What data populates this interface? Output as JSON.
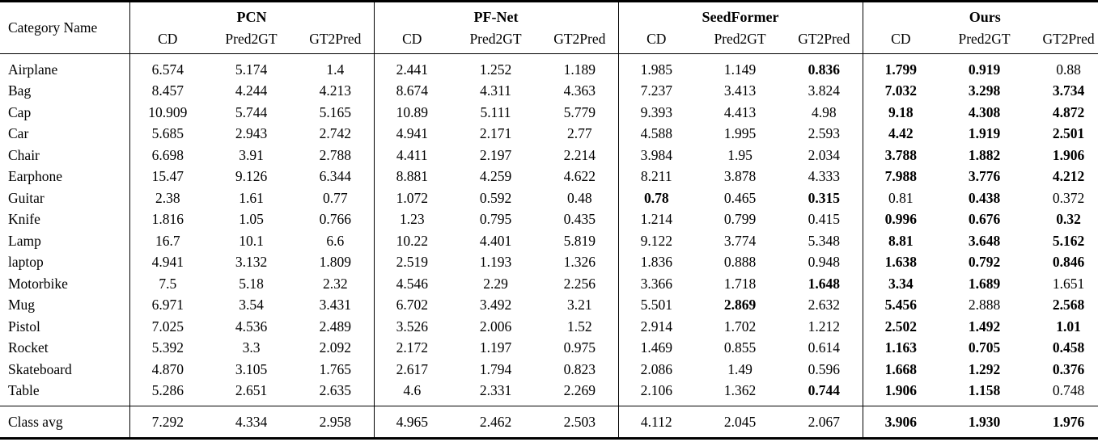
{
  "table": {
    "category_header": "Category Name",
    "groups": [
      "PCN",
      "PF-Net",
      "SeedFormer",
      "Ours"
    ],
    "metric_headers": [
      "CD",
      "Pred2GT",
      "GT2Pred"
    ],
    "rows": [
      {
        "category": "Airplane",
        "values": [
          "6.574",
          "5.174",
          "1.4",
          "2.441",
          "1.252",
          "1.189",
          "1.985",
          "1.149",
          "0.836",
          "1.799",
          "0.919",
          "0.88"
        ],
        "bold": [
          8,
          9,
          10
        ]
      },
      {
        "category": "Bag",
        "values": [
          "8.457",
          "4.244",
          "4.213",
          "8.674",
          "4.311",
          "4.363",
          "7.237",
          "3.413",
          "3.824",
          "7.032",
          "3.298",
          "3.734"
        ],
        "bold": [
          9,
          10,
          11
        ]
      },
      {
        "category": "Cap",
        "values": [
          "10.909",
          "5.744",
          "5.165",
          "10.89",
          "5.111",
          "5.779",
          "9.393",
          "4.413",
          "4.98",
          "9.18",
          "4.308",
          "4.872"
        ],
        "bold": [
          9,
          10,
          11
        ]
      },
      {
        "category": "Car",
        "values": [
          "5.685",
          "2.943",
          "2.742",
          "4.941",
          "2.171",
          "2.77",
          "4.588",
          "1.995",
          "2.593",
          "4.42",
          "1.919",
          "2.501"
        ],
        "bold": [
          9,
          10,
          11
        ]
      },
      {
        "category": "Chair",
        "values": [
          "6.698",
          "3.91",
          "2.788",
          "4.411",
          "2.197",
          "2.214",
          "3.984",
          "1.95",
          "2.034",
          "3.788",
          "1.882",
          "1.906"
        ],
        "bold": [
          9,
          10,
          11
        ]
      },
      {
        "category": "Earphone",
        "values": [
          "15.47",
          "9.126",
          "6.344",
          "8.881",
          "4.259",
          "4.622",
          "8.211",
          "3.878",
          "4.333",
          "7.988",
          "3.776",
          "4.212"
        ],
        "bold": [
          9,
          10,
          11
        ]
      },
      {
        "category": "Guitar",
        "values": [
          "2.38",
          "1.61",
          "0.77",
          "1.072",
          "0.592",
          "0.48",
          "0.78",
          "0.465",
          "0.315",
          "0.81",
          "0.438",
          "0.372"
        ],
        "bold": [
          6,
          8,
          10
        ]
      },
      {
        "category": "Knife",
        "values": [
          "1.816",
          "1.05",
          "0.766",
          "1.23",
          "0.795",
          "0.435",
          "1.214",
          "0.799",
          "0.415",
          "0.996",
          "0.676",
          "0.32"
        ],
        "bold": [
          9,
          10,
          11
        ]
      },
      {
        "category": "Lamp",
        "values": [
          "16.7",
          "10.1",
          "6.6",
          "10.22",
          "4.401",
          "5.819",
          "9.122",
          "3.774",
          "5.348",
          "8.81",
          "3.648",
          "5.162"
        ],
        "bold": [
          9,
          10,
          11
        ]
      },
      {
        "category": "laptop",
        "values": [
          "4.941",
          "3.132",
          "1.809",
          "2.519",
          "1.193",
          "1.326",
          "1.836",
          "0.888",
          "0.948",
          "1.638",
          "0.792",
          "0.846"
        ],
        "bold": [
          9,
          10,
          11
        ]
      },
      {
        "category": "Motorbike",
        "values": [
          "7.5",
          "5.18",
          "2.32",
          "4.546",
          "2.29",
          "2.256",
          "3.366",
          "1.718",
          "1.648",
          "3.34",
          "1.689",
          "1.651"
        ],
        "bold": [
          8,
          9,
          10
        ]
      },
      {
        "category": "Mug",
        "values": [
          "6.971",
          "3.54",
          "3.431",
          "6.702",
          "3.492",
          "3.21",
          "5.501",
          "2.869",
          "2.632",
          "5.456",
          "2.888",
          "2.568"
        ],
        "bold": [
          7,
          9,
          11
        ]
      },
      {
        "category": "Pistol",
        "values": [
          "7.025",
          "4.536",
          "2.489",
          "3.526",
          "2.006",
          "1.52",
          "2.914",
          "1.702",
          "1.212",
          "2.502",
          "1.492",
          "1.01"
        ],
        "bold": [
          9,
          10,
          11
        ]
      },
      {
        "category": "Rocket",
        "values": [
          "5.392",
          "3.3",
          "2.092",
          "2.172",
          "1.197",
          "0.975",
          "1.469",
          "0.855",
          "0.614",
          "1.163",
          "0.705",
          "0.458"
        ],
        "bold": [
          9,
          10,
          11
        ]
      },
      {
        "category": "Skateboard",
        "values": [
          "4.870",
          "3.105",
          "1.765",
          "2.617",
          "1.794",
          "0.823",
          "2.086",
          "1.49",
          "0.596",
          "1.668",
          "1.292",
          "0.376"
        ],
        "bold": [
          9,
          10,
          11
        ]
      },
      {
        "category": "Table",
        "values": [
          "5.286",
          "2.651",
          "2.635",
          "4.6",
          "2.331",
          "2.269",
          "2.106",
          "1.362",
          "0.744",
          "1.906",
          "1.158",
          "0.748"
        ],
        "bold": [
          8,
          9,
          10
        ]
      }
    ],
    "footer": {
      "category": "Class avg",
      "values": [
        "7.292",
        "4.334",
        "2.958",
        "4.965",
        "2.462",
        "2.503",
        "4.112",
        "2.045",
        "2.067",
        "3.906",
        "1.930",
        "1.976"
      ],
      "bold": [
        9,
        10,
        11
      ]
    }
  }
}
